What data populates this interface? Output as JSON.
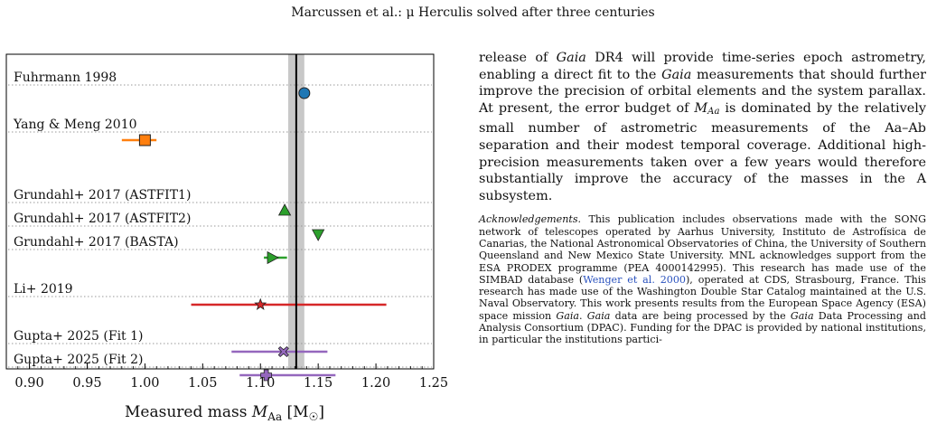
{
  "page": {
    "running_head": "Marcussen et al.: μ Herculis solved after three centuries"
  },
  "chart_data": {
    "type": "scatter",
    "title": "",
    "xlabel": "Measured mass M_Aa [M☉]",
    "xlabel_parts": {
      "main": "Measured mass ",
      "sym": "M",
      "sub": "Aa",
      "unit": " [M",
      "sun": "☉",
      "close": "]"
    },
    "ylabel": "",
    "xlim": [
      0.88,
      1.25
    ],
    "xticks": [
      0.9,
      0.95,
      1.0,
      1.05,
      1.1,
      1.15,
      1.2,
      1.25
    ],
    "xtick_labels": [
      "0.90",
      "0.95",
      "1.00",
      "1.05",
      "1.10",
      "1.15",
      "1.20",
      "1.25"
    ],
    "reference": {
      "value": 1.131,
      "band": [
        1.124,
        1.138
      ],
      "band_color": "#c8c8c8",
      "line_color": "#000000"
    },
    "grid": false,
    "points": [
      {
        "label": "Fuhrmann 1998",
        "x": 1.138,
        "err": null,
        "marker": "circle",
        "color": "#1f77b4"
      },
      {
        "label": "Yang & Meng 2010",
        "x": 1.0,
        "err": [
          0.98,
          1.01
        ],
        "marker": "square",
        "color": "#ff7f0e"
      },
      {
        "label": "Grundahl+ 2017 (ASTFIT1)",
        "x": 1.121,
        "err": null,
        "marker": "triangle-up",
        "color": "#2ca02c"
      },
      {
        "label": "Grundahl+ 2017 (ASTFIT2)",
        "x": 1.15,
        "err": null,
        "marker": "triangle-down",
        "color": "#2ca02c"
      },
      {
        "label": "Grundahl+ 2017 (BASTA)",
        "x": 1.11,
        "err": [
          1.103,
          1.123
        ],
        "marker": "triangle-right",
        "color": "#2ca02c"
      },
      {
        "label": "Li+ 2019",
        "x": 1.1,
        "err": [
          1.04,
          1.209
        ],
        "marker": "star",
        "color": "#d62728"
      },
      {
        "label": "Gupta+ 2025 (Fit 1)",
        "x": 1.12,
        "err": [
          1.075,
          1.158
        ],
        "marker": "x",
        "color": "#9467bd"
      },
      {
        "label": "Gupta+ 2025 (Fit 2)",
        "x": 1.105,
        "err": [
          1.082,
          1.165
        ],
        "marker": "plus",
        "color": "#9467bd"
      }
    ]
  },
  "text": {
    "p1": [
      {
        "t": "release of "
      },
      {
        "t": "Gaia",
        "i": true
      },
      {
        "t": " DR4 will provide time-series epoch astrometry, enabling a direct fit to the "
      },
      {
        "t": "Gaia",
        "i": true
      },
      {
        "t": " measurements that should further improve the precision of orbital elements and the system parallax. At present, the error budget of "
      },
      {
        "t": "M",
        "i": true
      },
      {
        "t": "Aa",
        "sub": true
      },
      {
        "t": " is dominated by the relatively small number of astrometric measurements of the Aa–Ab separation and their modest temporal coverage. Additional high-precision measurements taken over a few years would therefore substantially improve the accuracy of the masses in the A subsystem."
      }
    ],
    "ack": [
      {
        "t": "Acknowledgements.",
        "i": true
      },
      {
        "t": " This publication includes observations made with the SONG network of telescopes operated by Aarhus University, Instituto de Astrofísica de Canarias, the National Astronomical Observatories of China, the University of Southern Queensland and New Mexico State University. MNL acknowledges support from the ESA PRODEX programme (PEA 4000142995). This research has made use of the SIMBAD database ("
      },
      {
        "t": "Wenger et al. 2000",
        "cite": true
      },
      {
        "t": "), operated at CDS, Strasbourg, France. This research has made use of the Washington Double Star Catalog maintained at the U.S. Naval Observatory. This work presents results from the European Space Agency (ESA) space mission "
      },
      {
        "t": "Gaia",
        "i": true
      },
      {
        "t": ". "
      },
      {
        "t": "Gaia",
        "i": true
      },
      {
        "t": " data are being processed by the "
      },
      {
        "t": "Gaia",
        "i": true
      },
      {
        "t": " Data Processing and Analysis Consortium (DPAC). Funding for the DPAC is provided by national institutions, in particular the institutions partici-"
      }
    ]
  }
}
